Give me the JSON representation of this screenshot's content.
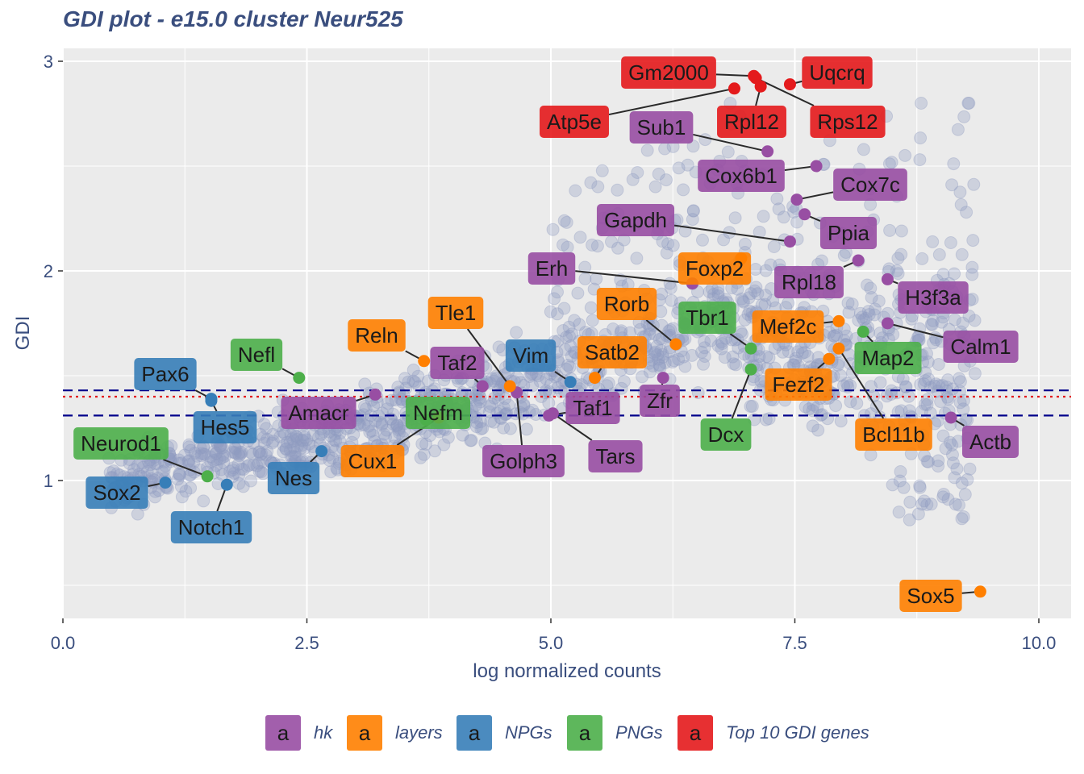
{
  "title": "GDI plot - e15.0 cluster Neur525",
  "chart_data": {
    "type": "scatter",
    "title": "GDI plot - e15.0 cluster Neur525",
    "xlabel": "log normalized counts",
    "ylabel": "GDI",
    "xlim": [
      0,
      10.4
    ],
    "ylim": [
      0.35,
      3.05
    ],
    "xticks": [
      {
        "value": 0,
        "label": "0.0"
      },
      {
        "value": 2.5,
        "label": "2.5"
      },
      {
        "value": 5,
        "label": "5.0"
      },
      {
        "value": 7.5,
        "label": "7.5"
      },
      {
        "value": 10,
        "label": "10.0"
      }
    ],
    "yticks": [
      {
        "value": 1,
        "label": "1"
      },
      {
        "value": 2,
        "label": "2"
      },
      {
        "value": 3,
        "label": "3"
      }
    ],
    "grid": true,
    "reference_lines": [
      {
        "y": 1.43,
        "style": "dashed",
        "color": "#00008B"
      },
      {
        "y": 1.31,
        "style": "dashed",
        "color": "#00008B"
      },
      {
        "y": 1.4,
        "style": "dotted",
        "color": "#E31A1C"
      }
    ],
    "legend": {
      "position": "bottom",
      "key_glyph": "a",
      "items": [
        {
          "name": "hk",
          "color": "#984EA3"
        },
        {
          "name": "layers",
          "color": "#FF7F00"
        },
        {
          "name": "NPGs",
          "color": "#377EB8"
        },
        {
          "name": "PNGs",
          "color": "#4DAF4A"
        },
        {
          "name": "Top 10 GDI genes",
          "color": "#E41A1C"
        }
      ]
    },
    "background_points": {
      "color": "#8E9AC0",
      "description_count": "all other genes"
    },
    "genes": [
      {
        "gene": "Gm2000",
        "group": "Top 10 GDI genes",
        "x": 7.08,
        "y": 2.93
      },
      {
        "gene": "Uqcrq",
        "group": "Top 10 GDI genes",
        "x": 7.45,
        "y": 2.89
      },
      {
        "gene": "Atp5e",
        "group": "Top 10 GDI genes",
        "x": 6.88,
        "y": 2.87
      },
      {
        "gene": "Rpl12",
        "group": "Top 10 GDI genes",
        "x": 7.15,
        "y": 2.88
      },
      {
        "gene": "Rps12",
        "group": "Top 10 GDI genes",
        "x": 7.1,
        "y": 2.92
      },
      {
        "gene": "Sub1",
        "group": "hk",
        "x": 7.22,
        "y": 2.57
      },
      {
        "gene": "Cox6b1",
        "group": "hk",
        "x": 7.72,
        "y": 2.5
      },
      {
        "gene": "Cox7c",
        "group": "hk",
        "x": 7.52,
        "y": 2.34
      },
      {
        "gene": "Gapdh",
        "group": "hk",
        "x": 7.45,
        "y": 2.14
      },
      {
        "gene": "Ppia",
        "group": "hk",
        "x": 7.6,
        "y": 2.27
      },
      {
        "gene": "Erh",
        "group": "hk",
        "x": 6.45,
        "y": 1.94
      },
      {
        "gene": "Rpl18",
        "group": "hk",
        "x": 8.15,
        "y": 2.05
      },
      {
        "gene": "H3f3a",
        "group": "hk",
        "x": 8.45,
        "y": 1.96
      },
      {
        "gene": "Calm1",
        "group": "hk",
        "x": 8.45,
        "y": 1.75
      },
      {
        "gene": "Actb",
        "group": "hk",
        "x": 9.1,
        "y": 1.3
      },
      {
        "gene": "Taf2",
        "group": "hk",
        "x": 4.3,
        "y": 1.45
      },
      {
        "gene": "Amacr",
        "group": "hk",
        "x": 3.2,
        "y": 1.41
      },
      {
        "gene": "Golph3",
        "group": "hk",
        "x": 4.65,
        "y": 1.42
      },
      {
        "gene": "Taf1",
        "group": "hk",
        "x": 4.98,
        "y": 1.31
      },
      {
        "gene": "Tars",
        "group": "hk",
        "x": 5.02,
        "y": 1.32
      },
      {
        "gene": "Zfr",
        "group": "hk",
        "x": 6.15,
        "y": 1.49
      },
      {
        "gene": "Foxp2",
        "group": "layers",
        "x": 6.95,
        "y": 2.06
      },
      {
        "gene": "Tle1",
        "group": "layers",
        "x": 4.58,
        "y": 1.45
      },
      {
        "gene": "Rorb",
        "group": "layers",
        "x": 6.28,
        "y": 1.65
      },
      {
        "gene": "Reln",
        "group": "layers",
        "x": 3.7,
        "y": 1.57
      },
      {
        "gene": "Satb2",
        "group": "layers",
        "x": 5.45,
        "y": 1.49
      },
      {
        "gene": "Mef2c",
        "group": "layers",
        "x": 7.95,
        "y": 1.76
      },
      {
        "gene": "Fezf2",
        "group": "layers",
        "x": 7.85,
        "y": 1.58
      },
      {
        "gene": "Bcl11b",
        "group": "layers",
        "x": 7.95,
        "y": 1.63
      },
      {
        "gene": "Cux1",
        "group": "layers",
        "x": 3.85,
        "y": 1.3
      },
      {
        "gene": "Sox5",
        "group": "layers",
        "x": 9.4,
        "y": 0.47
      },
      {
        "gene": "Vim",
        "group": "NPGs",
        "x": 5.2,
        "y": 1.47
      },
      {
        "gene": "Pax6",
        "group": "NPGs",
        "x": 1.52,
        "y": 1.39
      },
      {
        "gene": "Hes5",
        "group": "NPGs",
        "x": 1.52,
        "y": 1.38
      },
      {
        "gene": "Nes",
        "group": "NPGs",
        "x": 2.65,
        "y": 1.14
      },
      {
        "gene": "Sox2",
        "group": "NPGs",
        "x": 1.05,
        "y": 0.99
      },
      {
        "gene": "Notch1",
        "group": "NPGs",
        "x": 1.68,
        "y": 0.98
      },
      {
        "gene": "Nefl",
        "group": "PNGs",
        "x": 2.42,
        "y": 1.49
      },
      {
        "gene": "Neurod1",
        "group": "PNGs",
        "x": 1.48,
        "y": 1.02
      },
      {
        "gene": "Nefm",
        "group": "PNGs",
        "x": 3.72,
        "y": 1.29
      },
      {
        "gene": "Tbr1",
        "group": "PNGs",
        "x": 7.05,
        "y": 1.63
      },
      {
        "gene": "Map2",
        "group": "PNGs",
        "x": 8.2,
        "y": 1.71
      },
      {
        "gene": "Dcx",
        "group": "PNGs",
        "x": 7.05,
        "y": 1.53
      }
    ]
  }
}
